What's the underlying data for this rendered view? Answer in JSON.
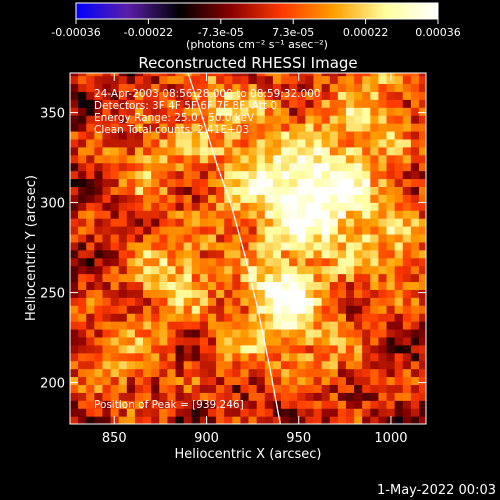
{
  "chart_data": {
    "type": "heatmap",
    "title": "Reconstructed RHESSI Image",
    "xlabel": "Heliocentric X (arcsec)",
    "ylabel": "Heliocentric Y (arcsec)",
    "xlim": [
      826,
      1019
    ],
    "ylim": [
      177,
      372
    ],
    "xticks": [
      850,
      900,
      950,
      1000
    ],
    "yticks": [
      200,
      250,
      300,
      350
    ],
    "colorbar": {
      "min": -0.00036,
      "max": 0.00036,
      "ticks": [
        "-0.00036",
        "-0.00022",
        "-7.3e-05",
        "7.3e-05",
        "0.00022",
        "0.00036"
      ],
      "unit_label": "(photons cm⁻² s⁻¹ asec⁻²)",
      "colors": [
        "#0000ff",
        "#5a1fa8",
        "#000000",
        "#8a0000",
        "#ff3a00",
        "#ffa000",
        "#ffffa0",
        "#ffffff"
      ]
    },
    "annotations": [
      "24-Apr-2003 08:56:28.000 to 08:59:32.000",
      "Detectors: 3F 4F 5F 6F 7F 8F, Att 0",
      "Energy Range: 25.0 - 50.0 keV",
      "Clean     Total counts: 2.41E+03"
    ],
    "peak_label": "Position of Peak = [939,246]",
    "peak": [
      939,
      246
    ],
    "limb_points": [
      [
        890,
        372
      ],
      [
        897,
        350
      ],
      [
        906,
        320
      ],
      [
        913,
        300
      ],
      [
        921,
        270
      ],
      [
        928,
        240
      ],
      [
        934,
        210
      ],
      [
        940,
        177
      ]
    ]
  },
  "footer": {
    "date": "1-May-2022 00:03"
  }
}
